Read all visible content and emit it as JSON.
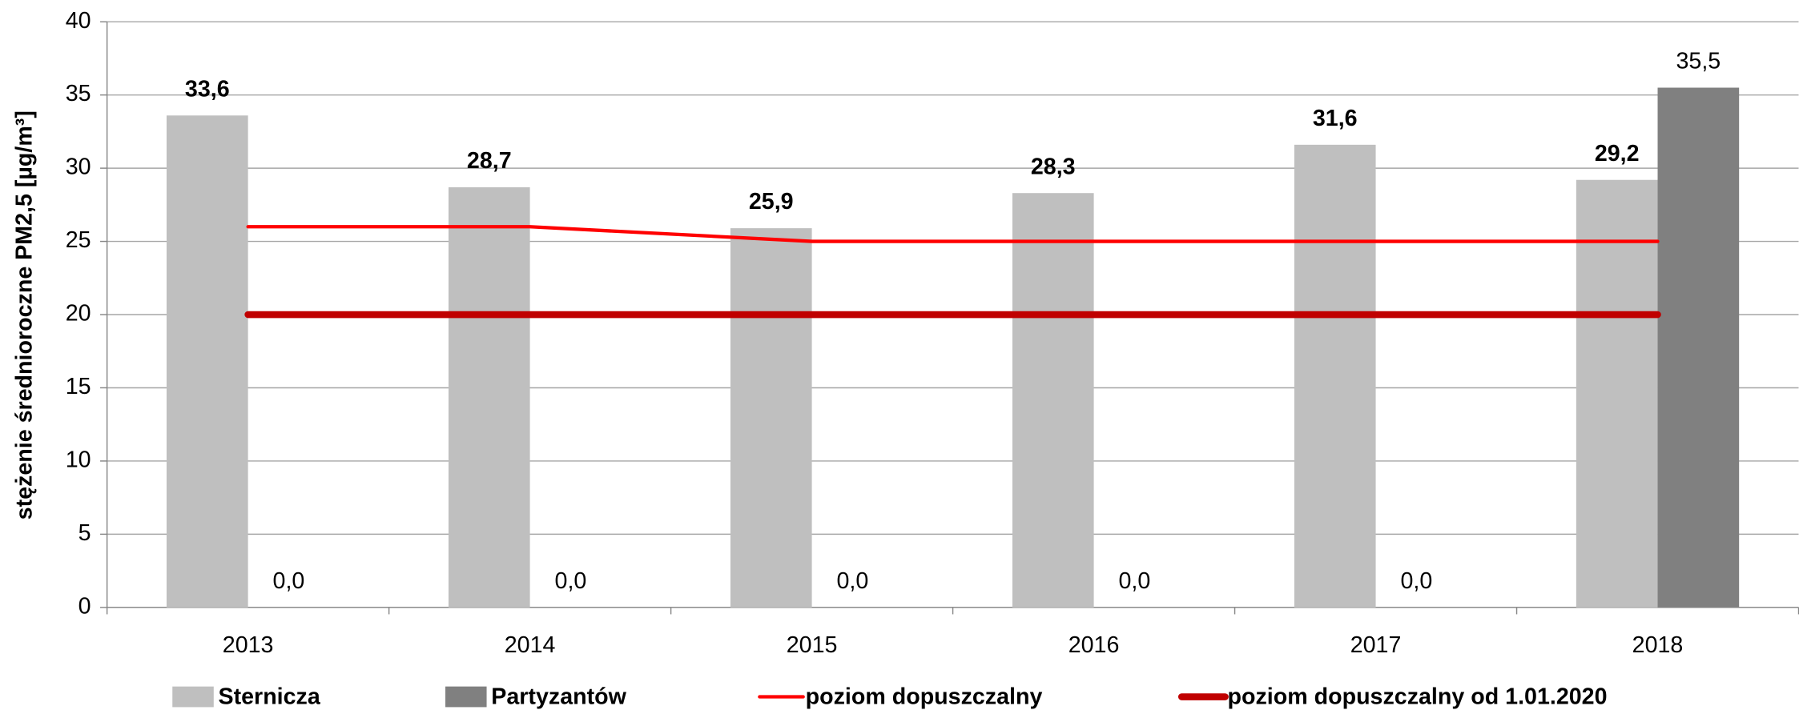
{
  "chart_data": {
    "type": "bar",
    "y_label": "stężenie średnioroczne PM2,5 [µg/m³]",
    "categories": [
      "2013",
      "2014",
      "2015",
      "2016",
      "2017",
      "2018"
    ],
    "series": [
      {
        "name": "Sternicza",
        "type": "bar",
        "color": "#bfbfbf",
        "label_weight": "bold",
        "values": [
          33.6,
          28.7,
          25.9,
          28.3,
          31.6,
          29.2
        ],
        "value_labels": [
          "33,6",
          "28,7",
          "25,9",
          "28,3",
          "31,6",
          "29,2"
        ]
      },
      {
        "name": "Partyzantów",
        "type": "bar",
        "color": "#808080",
        "label_weight": "normal",
        "values": [
          0,
          0,
          0,
          0,
          0,
          35.5
        ],
        "value_labels": [
          "0,0",
          "0,0",
          "0,0",
          "0,0",
          "0,0",
          "35,5"
        ]
      },
      {
        "name": "poziom dopuszczalny",
        "type": "line",
        "color": "#ff0000",
        "width": 3,
        "values": [
          26,
          26,
          25,
          25,
          25,
          25
        ]
      },
      {
        "name": "poziom dopuszczalny od 1.01.2020",
        "type": "line",
        "color": "#c00000",
        "width": 6,
        "values": [
          20,
          20,
          20,
          20,
          20,
          20
        ]
      }
    ],
    "ylim": [
      0,
      40
    ],
    "yticks": [
      0,
      5,
      10,
      15,
      20,
      25,
      30,
      35,
      40
    ],
    "grid": true
  }
}
